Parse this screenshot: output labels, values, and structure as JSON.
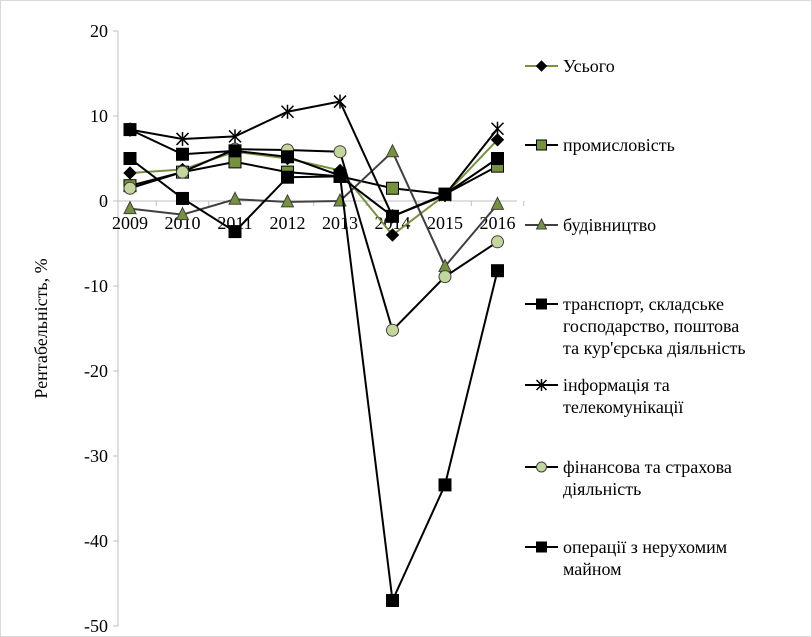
{
  "chart_data": {
    "type": "line",
    "title": "",
    "xlabel": "",
    "ylabel": "Рентабельність, %",
    "ylim": [
      -50,
      20
    ],
    "yticks": [
      20,
      10,
      0,
      -10,
      -20,
      -30,
      -40,
      -50
    ],
    "grid": false,
    "legend_position": "right",
    "categories": [
      "2009",
      "2010",
      "2011",
      "2012",
      "2013",
      "2014",
      "2015",
      "2016"
    ],
    "series": [
      {
        "name": "Усього",
        "marker": "diamond",
        "line_color": "#76923c",
        "marker_fill": "#000000",
        "values": [
          3.3,
          3.7,
          5.8,
          5.0,
          3.6,
          -4.0,
          0.7,
          7.2
        ]
      },
      {
        "name": "промисловість",
        "marker": "square",
        "line_color": "#000000",
        "marker_fill": "#76923c",
        "values": [
          1.8,
          3.4,
          4.6,
          3.4,
          2.9,
          1.5,
          0.8,
          4.1
        ]
      },
      {
        "name": "будівництво",
        "marker": "triangle",
        "line_color": "#404040",
        "marker_fill": "#76923c",
        "values": [
          -0.9,
          -1.6,
          0.2,
          -0.1,
          0.0,
          5.8,
          -7.7,
          -0.4
        ]
      },
      {
        "name": "транспорт, складське господарство, поштова та кур'єрська діяльність",
        "name_lines": [
          "транспорт, складське",
          "господарство, поштова",
          "та кур'єрська діяльність"
        ],
        "marker": "square",
        "line_color": "#000000",
        "marker_fill": "#000000",
        "values": [
          5.0,
          0.3,
          -3.6,
          2.8,
          2.9,
          -1.8,
          0.8,
          5.0
        ]
      },
      {
        "name": "інформація та телекомунікації",
        "name_lines": [
          "інформація та",
          "телекомунікації"
        ],
        "marker": "star",
        "line_color": "#000000",
        "marker_fill": "#000000",
        "values": [
          8.4,
          7.3,
          7.6,
          10.5,
          11.7,
          -1.8,
          0.7,
          8.5
        ]
      },
      {
        "name": "фінансова та страхова діяльність",
        "name_lines": [
          "фінансова та страхова",
          "діяльність"
        ],
        "marker": "circle",
        "line_color": "#000000",
        "marker_fill": "#c4d79b",
        "values": [
          1.5,
          3.4,
          6.1,
          6.0,
          5.8,
          -15.2,
          -8.9,
          -4.8
        ]
      },
      {
        "name": "операції з нерухомим майном",
        "name_lines": [
          "операції з нерухомим",
          "майном"
        ],
        "marker": "square",
        "line_color": "#000000",
        "marker_fill": "#000000",
        "values": [
          8.4,
          5.5,
          5.9,
          5.2,
          3.0,
          -47.0,
          -33.4,
          -8.2
        ]
      }
    ]
  }
}
